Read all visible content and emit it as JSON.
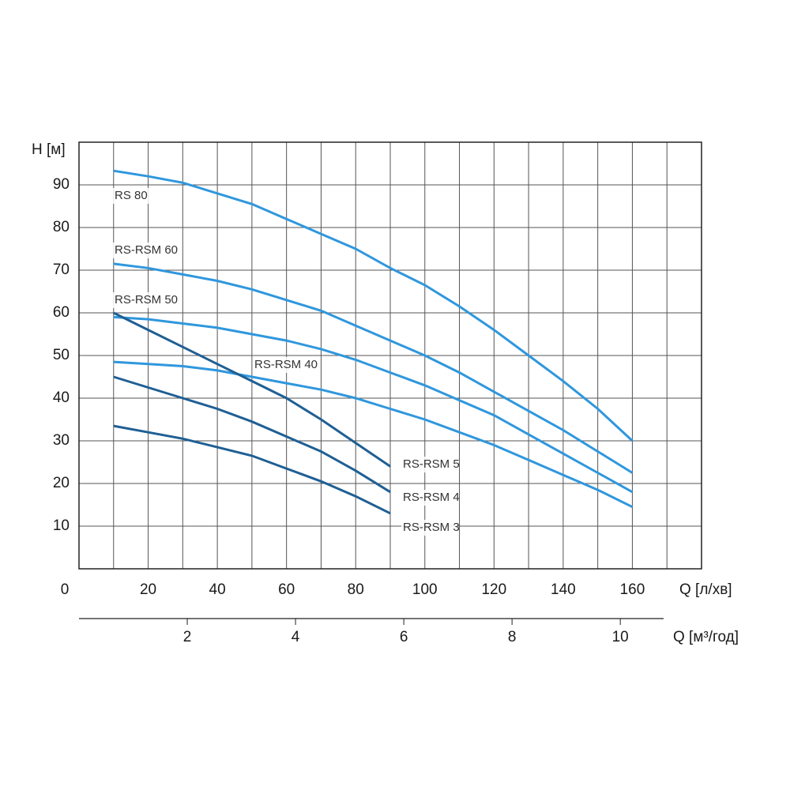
{
  "chart_data": {
    "type": "line",
    "ylabel": "H [м]",
    "xlabel": "Q [л/хв]",
    "x2label": "Q [м³/год]",
    "xlim": [
      0,
      180
    ],
    "xticks": [
      0,
      20,
      40,
      60,
      80,
      100,
      120,
      140,
      160
    ],
    "xgrid": [
      10,
      20,
      30,
      40,
      50,
      60,
      70,
      80,
      90,
      100,
      110,
      120,
      130,
      140,
      150,
      160,
      170
    ],
    "ylim": [
      0,
      100
    ],
    "yticks": [
      10,
      20,
      30,
      40,
      50,
      60,
      70,
      80,
      90
    ],
    "x2lim": [
      0,
      10.8
    ],
    "x2ticks": [
      2,
      4,
      6,
      8,
      10
    ],
    "grid": true,
    "series": [
      {
        "name": "RS 80",
        "color": "#2f97dd",
        "x": [
          10,
          20,
          30,
          40,
          50,
          60,
          70,
          80,
          90,
          100,
          110,
          120,
          130,
          140,
          150,
          160
        ],
        "values": [
          93.3,
          92,
          90.5,
          88,
          85.5,
          82,
          78.5,
          75,
          70.5,
          66.5,
          61.5,
          56,
          50,
          44,
          37.5,
          30
        ]
      },
      {
        "name": "RS-RSM 60",
        "color": "#2f97dd",
        "x": [
          10,
          20,
          30,
          40,
          50,
          60,
          70,
          80,
          90,
          100,
          110,
          120,
          130,
          140,
          150,
          160
        ],
        "values": [
          71.5,
          70.5,
          69,
          67.5,
          65.5,
          63,
          60.5,
          57,
          53.5,
          50,
          46,
          41.5,
          37,
          32.5,
          27.5,
          22.5
        ]
      },
      {
        "name": "RS-RSM 50",
        "color": "#2f97dd",
        "x": [
          10,
          20,
          30,
          40,
          50,
          60,
          70,
          80,
          90,
          100,
          110,
          120,
          130,
          140,
          150,
          160
        ],
        "values": [
          59,
          58.5,
          57.5,
          56.5,
          55,
          53.5,
          51.5,
          49,
          46,
          43,
          39.5,
          36,
          31.5,
          27,
          22.5,
          18
        ]
      },
      {
        "name": "RS-RSM 40",
        "color": "#2f97dd",
        "x": [
          10,
          20,
          30,
          40,
          50,
          60,
          70,
          80,
          90,
          100,
          110,
          120,
          130,
          140,
          150,
          160
        ],
        "values": [
          48.5,
          48,
          47.5,
          46.5,
          45,
          43.5,
          42,
          40,
          37.5,
          35,
          32,
          29,
          25.5,
          22,
          18.5,
          14.5
        ]
      },
      {
        "name": "RS-RSM 5",
        "color": "#1f5f94",
        "x": [
          10,
          20,
          30,
          40,
          50,
          60,
          70,
          80,
          90
        ],
        "values": [
          60,
          56,
          52,
          48,
          44,
          40,
          35,
          29.5,
          24
        ]
      },
      {
        "name": "RS-RSM 4",
        "color": "#1f5f94",
        "x": [
          10,
          20,
          30,
          40,
          50,
          60,
          70,
          80,
          90
        ],
        "values": [
          45,
          42.5,
          40,
          37.5,
          34.5,
          31,
          27.5,
          23,
          18
        ]
      },
      {
        "name": "RS-RSM 3",
        "color": "#1f5f94",
        "x": [
          10,
          20,
          30,
          40,
          50,
          60,
          70,
          80,
          90
        ],
        "values": [
          33.5,
          32,
          30.5,
          28.5,
          26.5,
          23.5,
          20.5,
          17,
          13
        ]
      }
    ]
  }
}
